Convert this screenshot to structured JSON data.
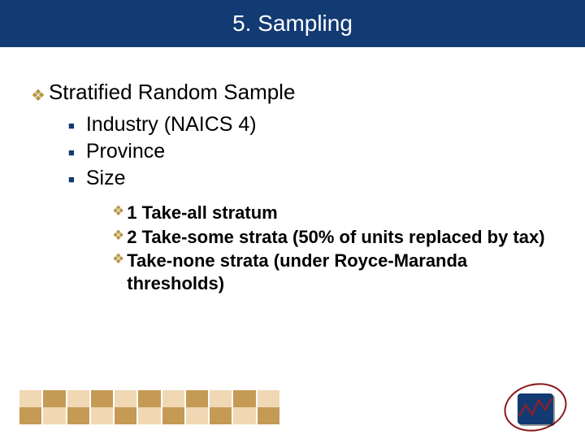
{
  "colors": {
    "header_bg": "#123a73",
    "header_text": "#ffffff",
    "body_text": "#000000",
    "diamond": "#b79646",
    "square": "#123a73",
    "footer_light": "#f0d8b4",
    "footer_dark": "#c59a54",
    "logo_ring": "#8a1818",
    "logo_panel": "#123a73",
    "logo_zig": "#a01c1c"
  },
  "header": {
    "title": "5. Sampling"
  },
  "main": {
    "text": "Stratified Random Sample",
    "subs": [
      {
        "text": "Industry (NAICS 4)"
      },
      {
        "text": "Province"
      },
      {
        "text": "Size"
      }
    ],
    "subsubs": [
      {
        "text": "1 Take-all stratum"
      },
      {
        "text": "2 Take-some strata (50% of units  replaced by tax)"
      },
      {
        "text": "Take-none strata (under Royce-Maranda thresholds)"
      }
    ]
  },
  "footer": {
    "columns": 11
  }
}
